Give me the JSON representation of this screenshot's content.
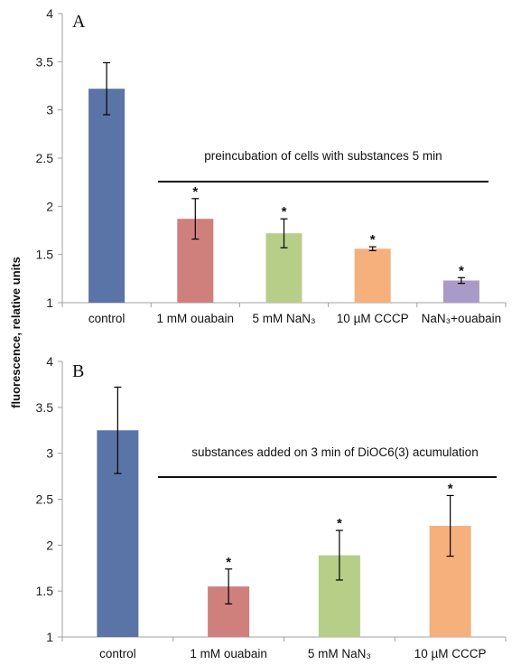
{
  "ylabel": "fluorescence, relative units",
  "colors": {
    "blue": "#5b74a8",
    "red": "#cf7f7c",
    "green": "#b6ce88",
    "orange": "#f5b07c",
    "purple": "#a99bc8",
    "axis": "#a0a0a0",
    "line": "#111111"
  },
  "chart_data": [
    {
      "type": "bar",
      "panel_label": "A",
      "annotation": "preincubation of cells with substances 5 min",
      "ylim": [
        1,
        4
      ],
      "yticks": [
        "1",
        "1.5",
        "2",
        "2.5",
        "3",
        "3.5",
        "4"
      ],
      "grid": false,
      "categories": [
        "control",
        "1 mM ouabain",
        "5 mM NaN₃",
        "10 µM CCCP",
        "NaN₃+ouabain"
      ],
      "values": [
        3.22,
        1.87,
        1.72,
        1.56,
        1.23
      ],
      "errors": [
        0.27,
        0.21,
        0.15,
        0.02,
        0.03
      ],
      "significance": [
        "",
        "*",
        "*",
        "*",
        "*"
      ],
      "bar_colors": [
        "blue",
        "red",
        "green",
        "orange",
        "purple"
      ]
    },
    {
      "type": "bar",
      "panel_label": "B",
      "annotation": "substances added on 3 min of DiOC6(3) acumulation",
      "ylim": [
        1,
        4
      ],
      "yticks": [
        "1",
        "1.5",
        "2",
        "2.5",
        "3",
        "3.5",
        "4"
      ],
      "grid": false,
      "categories": [
        "control",
        "1 mM ouabain",
        "5 mM NaN₃",
        "10 µM CCCP"
      ],
      "values": [
        3.25,
        1.55,
        1.89,
        2.21
      ],
      "errors": [
        0.47,
        0.19,
        0.27,
        0.33
      ],
      "significance": [
        "",
        "*",
        "*",
        "*"
      ],
      "bar_colors": [
        "blue",
        "red",
        "green",
        "orange"
      ]
    }
  ]
}
